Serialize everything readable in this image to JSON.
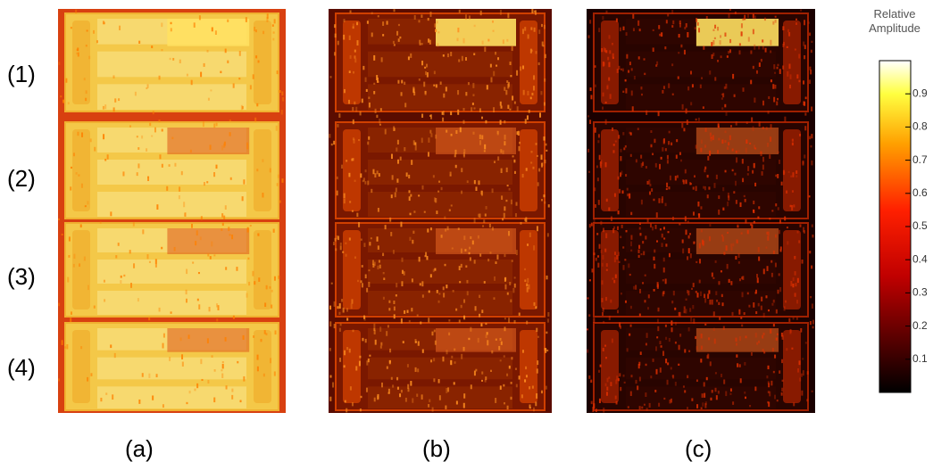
{
  "row_labels": [
    "(1)",
    "(2)",
    "(3)",
    "(4)"
  ],
  "panel_labels": [
    "(a)",
    "(b)",
    "(c)"
  ],
  "colorbar": {
    "title": "Relative Amplitude",
    "lim": [
      0,
      1
    ],
    "ticks": [
      0.1,
      0.2,
      0.3,
      0.4,
      0.5,
      0.6,
      0.7,
      0.8,
      0.9
    ]
  }
}
